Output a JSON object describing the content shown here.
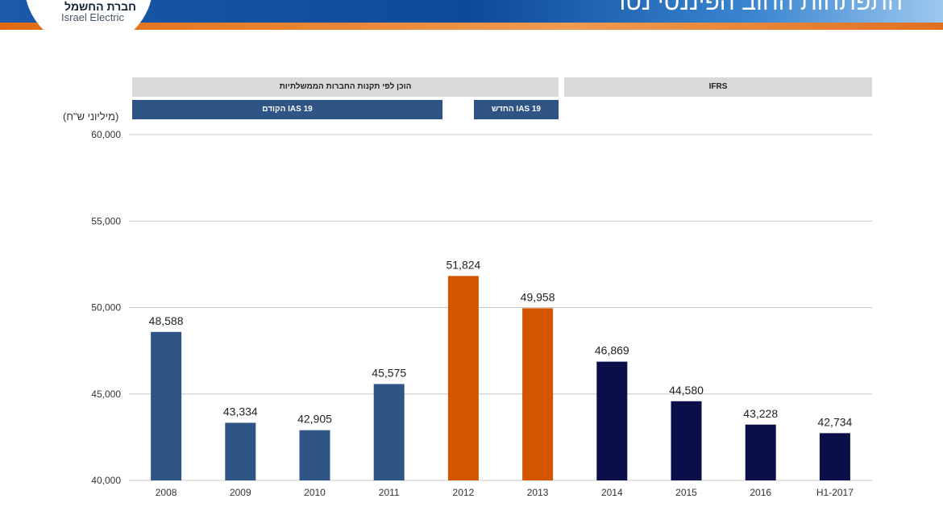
{
  "header": {
    "title": "התפתחות החוב הפיננסי נטו",
    "logo_he": "חברת החשמל",
    "logo_en": "Israel Electric"
  },
  "bands": {
    "gov": "הוכן לפי תקנות החברות הממשלתיות",
    "ifrs": "IFRS",
    "ias_old": "IAS 19  הקודם",
    "ias_new": "IAS 19 החדש"
  },
  "chart_data": {
    "type": "bar",
    "unit_label": "(מיליוני ש\"ח)",
    "categories": [
      "2008",
      "2009",
      "2010",
      "2011",
      "2012",
      "2013",
      "2014",
      "2015",
      "2016",
      "H1-2017"
    ],
    "values": [
      48588,
      43334,
      42905,
      45575,
      51824,
      49958,
      46869,
      44580,
      43228,
      42734
    ],
    "value_labels": [
      "48,588",
      "43,334",
      "42,905",
      "45,575",
      "51,824",
      "49,958",
      "46,869",
      "44,580",
      "43,228",
      "42,734"
    ],
    "colors": [
      "#2e5586",
      "#2e5586",
      "#2e5586",
      "#2e5586",
      "#d45500",
      "#d45500",
      "#0a0f4a",
      "#0a0f4a",
      "#0a0f4a",
      "#0a0f4a"
    ],
    "ylim": [
      40000,
      60000
    ],
    "yticks": [
      40000,
      45000,
      50000,
      55000,
      60000
    ],
    "ytick_labels": [
      "40,000",
      "45,000",
      "50,000",
      "55,000",
      "60,000"
    ],
    "grid": true
  }
}
